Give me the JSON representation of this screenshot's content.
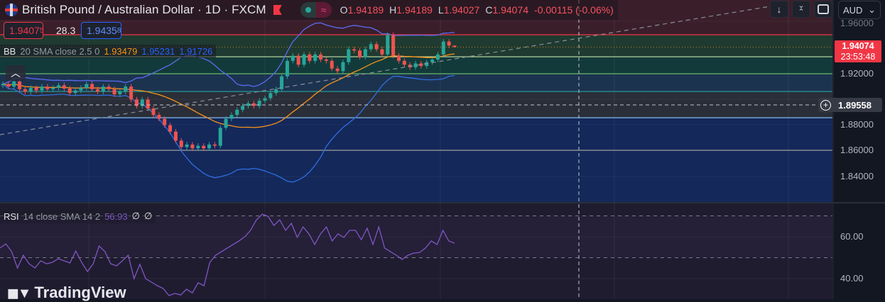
{
  "header": {
    "title": "British Pound / Australian Dollar · 1D · FXCM",
    "ohlc": {
      "o_label": "O",
      "o": "1.94189",
      "h_label": "H",
      "h": "1.94189",
      "l_label": "L",
      "l": "1.94027",
      "c_label": "C",
      "c": "1.94074",
      "change": "-0.00115 (-0.06%)"
    }
  },
  "quote": {
    "sell": "1.9407",
    "sell_sup": "5",
    "spread": "28.3",
    "buy": "1.9435",
    "buy_sup": "8"
  },
  "bb_legend": {
    "name": "BB",
    "params": "20 SMA close 2.5 0",
    "basis": "1.93479",
    "upper": "1.95231",
    "lower": "1.91726"
  },
  "rsi_legend": {
    "name": "RSI",
    "params": "14 close SMA 14 2",
    "value": "56.93",
    "v2": "∅",
    "v3": "∅"
  },
  "toolbar": {
    "currency": "AUD",
    "icons": [
      "arrow-down-icon",
      "collapse-icon",
      "fullscreen-icon"
    ]
  },
  "price_axis": {
    "ticks": [
      "1.96000",
      "1.92000",
      "1.88000",
      "1.86000",
      "1.84000"
    ],
    "last_price": "1.94074",
    "countdown": "23:53:48",
    "crosshair_price": "1.89558"
  },
  "rsi_axis": {
    "ticks": [
      "60.00",
      "40.00"
    ]
  },
  "branding": {
    "logo": "TradingView"
  },
  "colors": {
    "up": "#26a69a",
    "down": "#ef5350",
    "basis": "#f7931a",
    "bands": "#2962ff",
    "rsi": "#7e57c2",
    "last_price": "#f23645"
  },
  "chart_data": {
    "type": "candlestick",
    "symbol": "GBPAUD",
    "interval": "1D",
    "ylim": [
      1.83,
      1.965
    ],
    "price_levels": [
      1.9503,
      1.9332,
      1.92,
      1.9062,
      1.8858,
      1.8605
    ],
    "open": [
      1.911,
      1.912,
      1.91,
      1.914,
      1.908,
      1.906,
      1.909,
      1.907,
      1.91,
      1.908,
      1.909,
      1.911,
      1.9085,
      1.905,
      1.907,
      1.909,
      1.912,
      1.908,
      1.906,
      1.91,
      1.908,
      1.904,
      1.906,
      1.91,
      1.9,
      1.895,
      1.9,
      1.893,
      1.888,
      1.885,
      1.88,
      1.875,
      1.868,
      1.863,
      1.865,
      1.862,
      1.864,
      1.862,
      1.865,
      1.864,
      1.878,
      1.885,
      1.888,
      1.892,
      1.895,
      1.897,
      1.895,
      1.899,
      1.901,
      1.905,
      1.908,
      1.918,
      1.93,
      1.934,
      1.927,
      1.935,
      1.93,
      1.935,
      1.931,
      1.93,
      1.924,
      1.922,
      1.929,
      1.939,
      1.938,
      1.933,
      1.939,
      1.943,
      1.939,
      1.935,
      1.95,
      1.934,
      1.93,
      1.927,
      1.925,
      1.928,
      1.926,
      1.929,
      1.931,
      1.935,
      1.945,
      1.94189
    ],
    "close": [
      1.912,
      1.91,
      1.914,
      1.908,
      1.906,
      1.909,
      1.907,
      1.91,
      1.908,
      1.909,
      1.911,
      1.9085,
      1.905,
      1.907,
      1.909,
      1.912,
      1.908,
      1.906,
      1.91,
      1.908,
      1.904,
      1.906,
      1.91,
      1.9,
      1.895,
      1.9,
      1.893,
      1.888,
      1.885,
      1.88,
      1.875,
      1.868,
      1.863,
      1.865,
      1.862,
      1.864,
      1.862,
      1.865,
      1.864,
      1.878,
      1.885,
      1.888,
      1.892,
      1.895,
      1.897,
      1.895,
      1.899,
      1.901,
      1.905,
      1.908,
      1.918,
      1.93,
      1.934,
      1.927,
      1.935,
      1.93,
      1.935,
      1.931,
      1.93,
      1.924,
      1.922,
      1.929,
      1.939,
      1.938,
      1.933,
      1.939,
      1.943,
      1.939,
      1.935,
      1.95,
      1.934,
      1.93,
      1.927,
      1.925,
      1.928,
      1.926,
      1.929,
      1.931,
      1.935,
      1.945,
      1.94189,
      1.94074
    ],
    "high_pad": 0.002,
    "low_pad": 0.002,
    "bollinger": {
      "length": 20,
      "mult": 2.5,
      "basis_last": 1.93479,
      "upper_last": 1.95231,
      "lower_last": 1.91726
    },
    "rsi": {
      "ylim": [
        25,
        80
      ],
      "levels": [
        70,
        50
      ],
      "values": [
        54.6,
        56.6,
        52.9,
        45.1,
        51.2,
        47.1,
        45.1,
        48.5,
        47.1,
        47.8,
        49.5,
        48.5,
        47.5,
        53.2,
        47.8,
        43.4,
        47.1,
        55.6,
        52.9,
        47.1,
        46.1,
        48.5,
        51.2,
        40.0,
        46.8,
        40.0,
        38.3,
        36.6,
        35.3,
        31.9,
        32.9,
        32.2,
        34.9,
        33.2,
        38.0,
        36.6,
        47.8,
        51.2,
        52.9,
        54.6,
        56.3,
        58.0,
        60.0,
        63.1,
        68.1,
        70.8,
        69.8,
        65.4,
        68.1,
        63.1,
        66.4,
        59.7,
        64.7,
        61.4,
        56.3,
        61.4,
        64.7,
        58.0,
        61.4,
        59.7,
        63.1,
        63.1,
        58.6,
        64.1,
        56.3,
        64.7,
        54.6,
        52.9,
        51.2,
        49.2,
        51.2,
        52.2,
        52.5,
        54.6,
        58.0,
        56.3,
        63.1,
        58.0,
        56.93
      ]
    }
  }
}
